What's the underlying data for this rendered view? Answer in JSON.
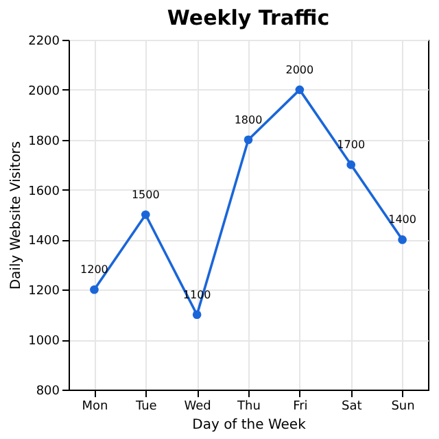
{
  "chart_data": {
    "type": "line",
    "title": "Weekly Traffic",
    "xlabel": "Day of the Week",
    "ylabel": "Daily Website Visitors",
    "categories": [
      "Mon",
      "Tue",
      "Wed",
      "Thu",
      "Fri",
      "Sat",
      "Sun"
    ],
    "values": [
      1200,
      1500,
      1100,
      1800,
      2000,
      1700,
      1400
    ],
    "color": "#1a66d9",
    "ylim": [
      800,
      2200
    ],
    "yticks": [
      800,
      1000,
      1200,
      1400,
      1600,
      1800,
      2000,
      2200
    ],
    "grid": true,
    "marker": "circle",
    "line_style": "solid",
    "data_labels": true
  }
}
